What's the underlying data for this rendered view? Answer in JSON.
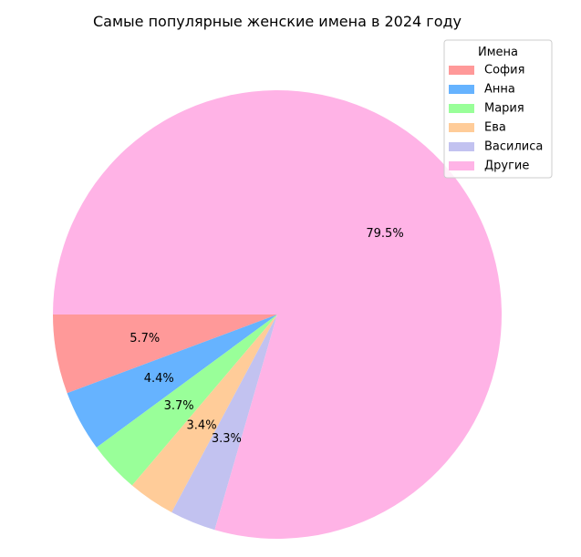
{
  "chart_data": {
    "type": "pie",
    "title": "Самые популярные женские имена в 2024 году",
    "legend_title": "Имена",
    "legend_position": "top-right",
    "start_angle_deg": 180,
    "direction": "counterclockwise",
    "slices": [
      {
        "label": "София",
        "value": 5.7,
        "display": "5.7%",
        "color": "#ff9999"
      },
      {
        "label": "Анна",
        "value": 4.4,
        "display": "4.4%",
        "color": "#66b3ff"
      },
      {
        "label": "Мария",
        "value": 3.7,
        "display": "3.7%",
        "color": "#99ff99"
      },
      {
        "label": "Ева",
        "value": 3.4,
        "display": "3.4%",
        "color": "#ffcc99"
      },
      {
        "label": "Василиса",
        "value": 3.3,
        "display": "3.3%",
        "color": "#c2c2f0"
      },
      {
        "label": "Другие",
        "value": 79.5,
        "display": "79.5%",
        "color": "#ffb3e6"
      }
    ]
  }
}
